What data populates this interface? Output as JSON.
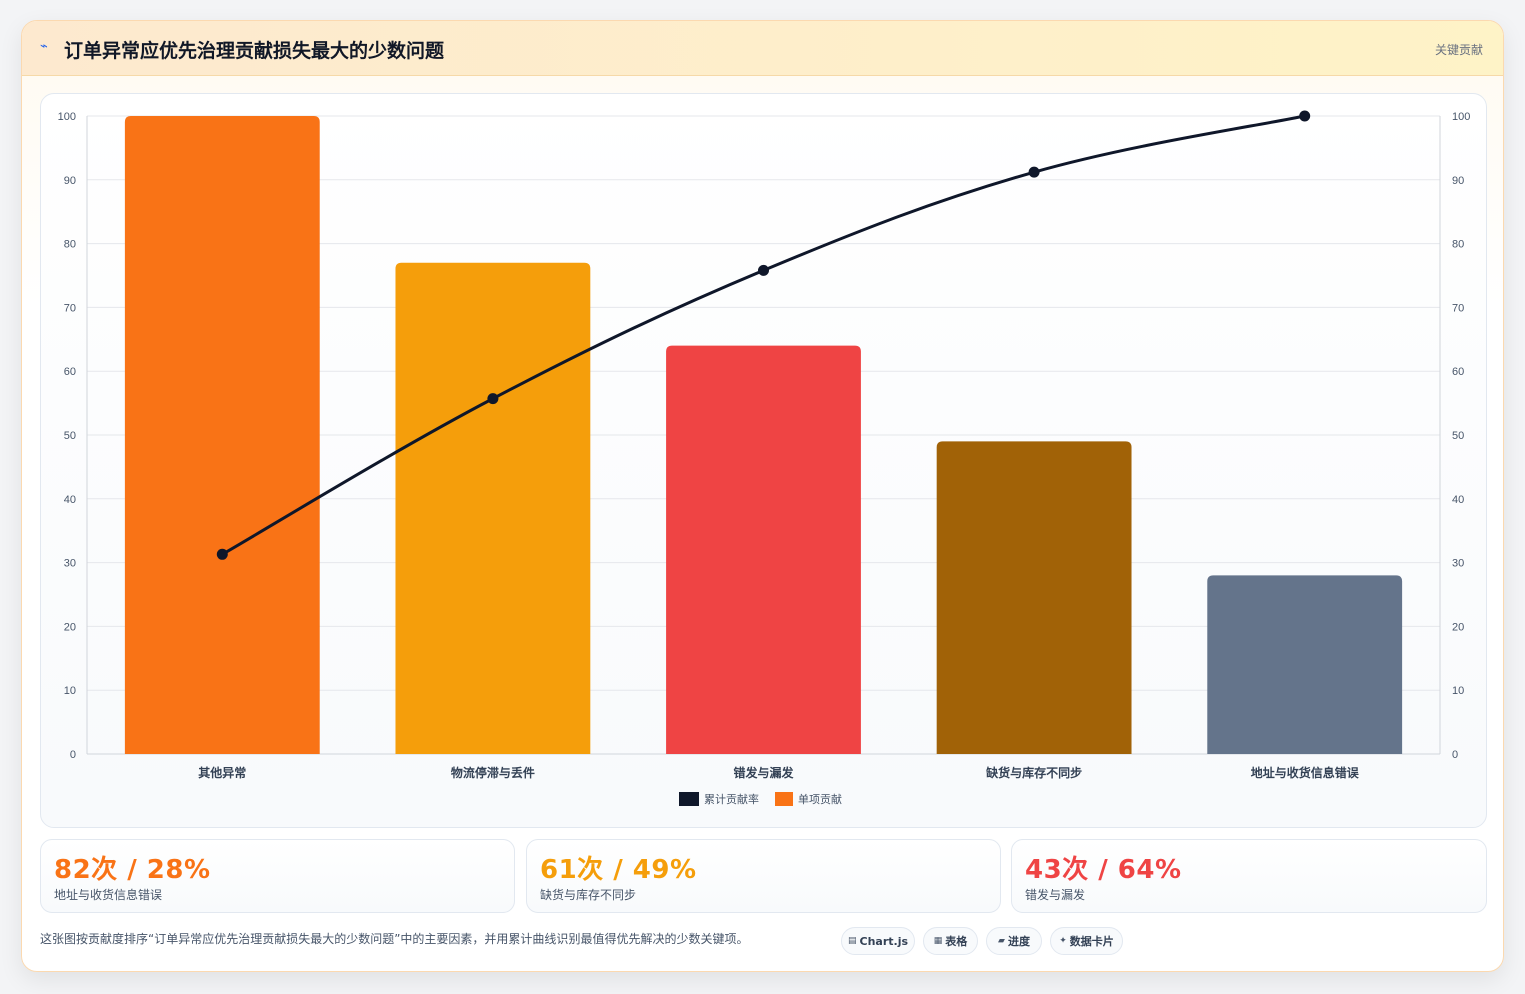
{
  "header": {
    "icon": "lightning-icon",
    "title": "订单异常应优先治理贡献损失最大的少数问题",
    "tag": "关键贡献"
  },
  "chart_data": {
    "type": "bar",
    "categories": [
      "其他异常",
      "物流停滞与丢件",
      "错发与漏发",
      "缺货与库存不同步",
      "地址与收货信息错误"
    ],
    "series": [
      {
        "name": "累计贡献率",
        "type": "line",
        "color": "#0f172a",
        "values": [
          31.3,
          55.7,
          75.8,
          91.2,
          100
        ]
      },
      {
        "name": "单项贡献",
        "type": "bar",
        "colors": [
          "#f97316",
          "#f59e0b",
          "#ef4444",
          "#a16207",
          "#64748b"
        ],
        "values": [
          100,
          77,
          64,
          49,
          28
        ]
      }
    ],
    "ylim": [
      0,
      100
    ],
    "y2lim": [
      0,
      100
    ],
    "yticks": [
      0,
      10,
      20,
      30,
      40,
      50,
      60,
      70,
      80,
      90,
      100
    ],
    "grid": true,
    "legend": "bottom"
  },
  "stats": [
    {
      "value": "82次 / 28%",
      "label": "地址与收货信息错误",
      "color": "#f97316"
    },
    {
      "value": "61次 / 49%",
      "label": "缺货与库存不同步",
      "color": "#f59e0b"
    },
    {
      "value": "43次 / 64%",
      "label": "错发与漏发",
      "color": "#ef4444"
    }
  ],
  "footer": {
    "description": "这张图按贡献度排序“订单异常应优先治理贡献损失最大的少数问题”中的主要因素，并用累计曲线识别最值得优先解决的少数关键项。",
    "chips": [
      {
        "icon": "chart-icon",
        "glyph": "▤",
        "label": "Chart.js"
      },
      {
        "icon": "table-icon",
        "glyph": "▦",
        "label": "表格"
      },
      {
        "icon": "progress-icon",
        "glyph": "▰",
        "label": "进度"
      },
      {
        "icon": "sparkle-icon",
        "glyph": "✦",
        "label": "数据卡片"
      }
    ]
  }
}
